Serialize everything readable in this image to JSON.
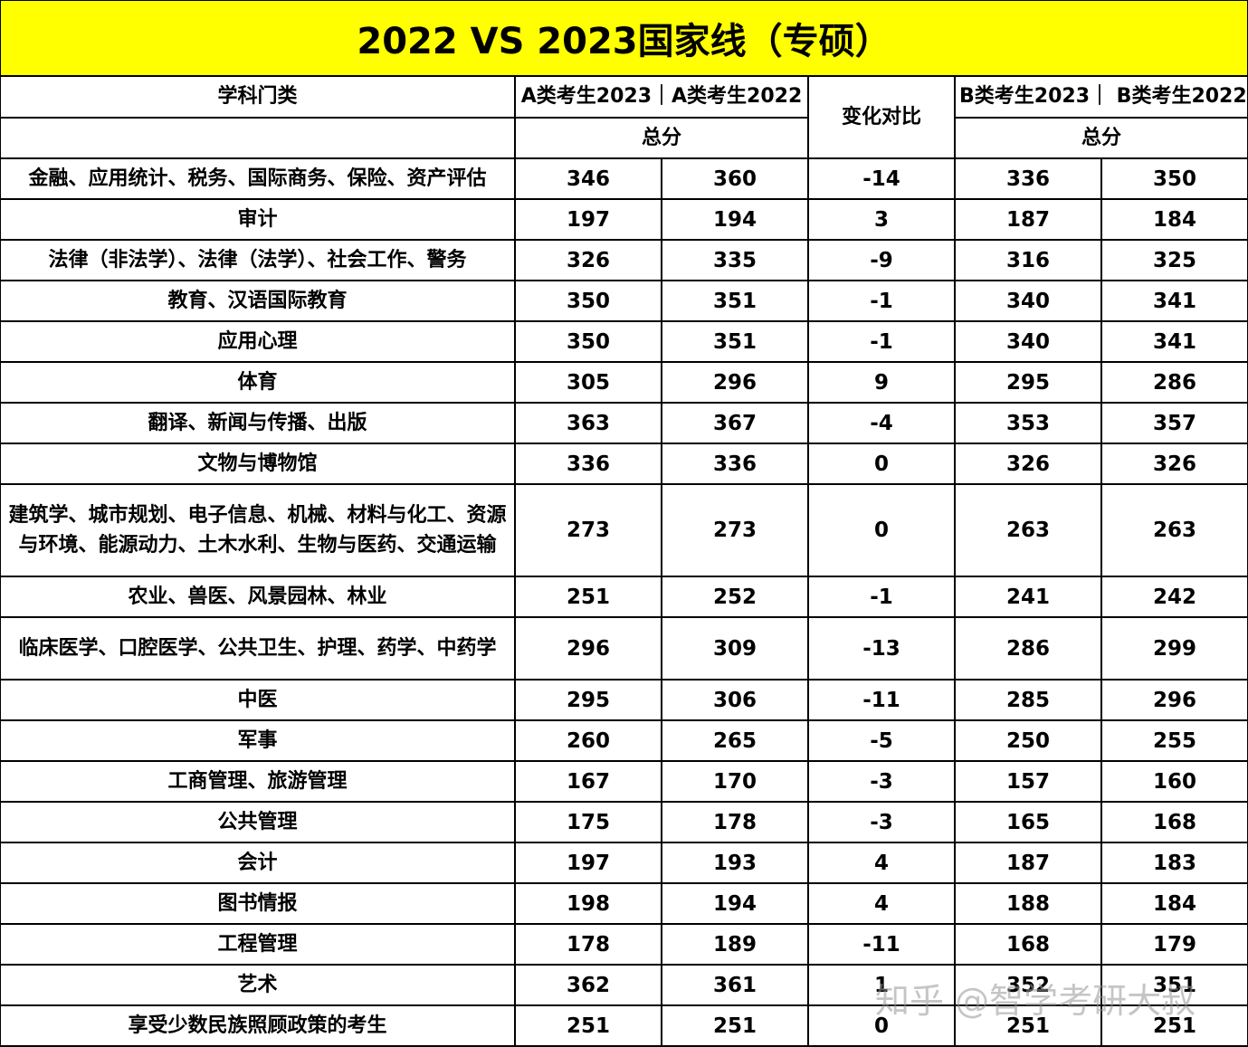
{
  "title": "2022 VS 2023国家线（专硕）",
  "header": {
    "subject_label": "学科门类",
    "a_group_label": "A类考生2023｜A类考生2022",
    "change_label": "变化对比",
    "b_group_label": "B类考生2023｜ B类考生2022",
    "a_total_label": "总分",
    "b_total_label": "总分"
  },
  "rows": [
    {
      "subject": "金融、应用统计、税务、国际商务、保险、资产评估",
      "a2023": "346",
      "a2022": "360",
      "change": "-14",
      "b2023": "336",
      "b2022": "350"
    },
    {
      "subject": "审计",
      "a2023": "197",
      "a2022": "194",
      "change": "3",
      "b2023": "187",
      "b2022": "184"
    },
    {
      "subject": "法律（非法学）、法律（法学）、社会工作、警务",
      "a2023": "326",
      "a2022": "335",
      "change": "-9",
      "b2023": "316",
      "b2022": "325"
    },
    {
      "subject": "教育、汉语国际教育",
      "a2023": "350",
      "a2022": "351",
      "change": "-1",
      "b2023": "340",
      "b2022": "341"
    },
    {
      "subject": "应用心理",
      "a2023": "350",
      "a2022": "351",
      "change": "-1",
      "b2023": "340",
      "b2022": "341"
    },
    {
      "subject": "体育",
      "a2023": "305",
      "a2022": "296",
      "change": "9",
      "b2023": "295",
      "b2022": "286"
    },
    {
      "subject": "翻译、新闻与传播、出版",
      "a2023": "363",
      "a2022": "367",
      "change": "-4",
      "b2023": "353",
      "b2022": "357"
    },
    {
      "subject": "文物与博物馆",
      "a2023": "336",
      "a2022": "336",
      "change": "0",
      "b2023": "326",
      "b2022": "326"
    },
    {
      "subject": "建筑学、城市规划、电子信息、机械、材料与化工、资源与环境、能源动力、土木水利、生物与医药、交通运输",
      "a2023": "273",
      "a2022": "273",
      "change": "0",
      "b2023": "263",
      "b2022": "263"
    },
    {
      "subject": "农业、兽医、风景园林、林业",
      "a2023": "251",
      "a2022": "252",
      "change": "-1",
      "b2023": "241",
      "b2022": "242"
    },
    {
      "subject": "临床医学、口腔医学、公共卫生、护理、药学、中药学",
      "a2023": "296",
      "a2022": "309",
      "change": "-13",
      "b2023": "286",
      "b2022": "299"
    },
    {
      "subject": "中医",
      "a2023": "295",
      "a2022": "306",
      "change": "-11",
      "b2023": "285",
      "b2022": "296"
    },
    {
      "subject": "军事",
      "a2023": "260",
      "a2022": "265",
      "change": "-5",
      "b2023": "250",
      "b2022": "255"
    },
    {
      "subject": "工商管理、旅游管理",
      "a2023": "167",
      "a2022": "170",
      "change": "-3",
      "b2023": "157",
      "b2022": "160"
    },
    {
      "subject": "公共管理",
      "a2023": "175",
      "a2022": "178",
      "change": "-3",
      "b2023": "165",
      "b2022": "168"
    },
    {
      "subject": "会计",
      "a2023": "197",
      "a2022": "193",
      "change": "4",
      "b2023": "187",
      "b2022": "183"
    },
    {
      "subject": "图书情报",
      "a2023": "198",
      "a2022": "194",
      "change": "4",
      "b2023": "188",
      "b2022": "184"
    },
    {
      "subject": "工程管理",
      "a2023": "178",
      "a2022": "189",
      "change": "-11",
      "b2023": "168",
      "b2022": "179"
    },
    {
      "subject": "艺术",
      "a2023": "362",
      "a2022": "361",
      "change": "1",
      "b2023": "352",
      "b2022": "351"
    },
    {
      "subject": "享受少数民族照顾政策的考生",
      "a2023": "251",
      "a2022": "251",
      "change": "0",
      "b2023": "251",
      "b2022": "251"
    }
  ],
  "watermark": "知乎 @智学考研大叔",
  "colors": {
    "title_background": "#ffff00",
    "grid_line": "#000000",
    "text": "#000000"
  }
}
